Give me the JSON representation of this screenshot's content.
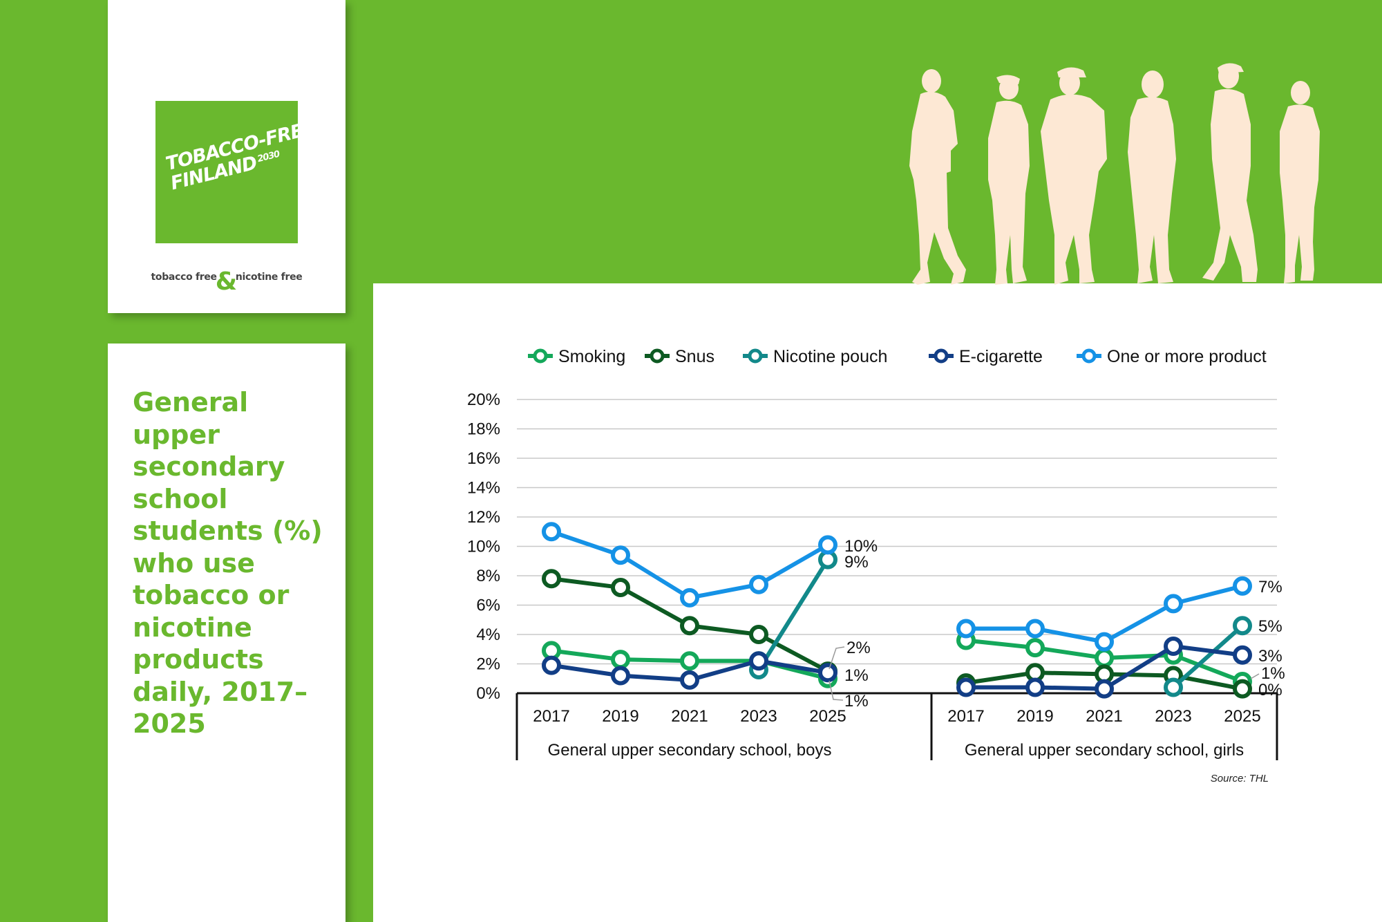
{
  "logo": {
    "line1": "TOBACCO-FREE",
    "registered": "®",
    "line2": "FINLAND",
    "year": "2030",
    "tagline_left": "tobacco free",
    "tagline_amp": "&",
    "tagline_right": "nicotine free"
  },
  "title": "General upper secondary school students (%) who use tobacco or nicotine products daily, 2017–2025",
  "source": "Source: THL",
  "colors": {
    "brand_green": "#6ab82e",
    "silhouettes": "#fde8d4",
    "smoking": "#14a85a",
    "snus": "#0d5a22",
    "nicotine_pouch": "#12898a",
    "e_cigarette": "#123e86",
    "one_or_more": "#1592e6"
  },
  "chart_data": {
    "type": "line",
    "ylim": [
      0,
      20
    ],
    "y_ticks": [
      "0%",
      "2%",
      "4%",
      "6%",
      "8%",
      "10%",
      "12%",
      "14%",
      "16%",
      "18%",
      "20%"
    ],
    "categories": [
      "2017",
      "2019",
      "2021",
      "2023",
      "2025"
    ],
    "legend_position": "top",
    "grid": true,
    "groups": [
      {
        "label": "General upper secondary school, boys",
        "series": [
          {
            "name": "Smoking",
            "values": [
              2.9,
              2.3,
              2.2,
              2.2,
              1.0
            ]
          },
          {
            "name": "Snus",
            "values": [
              7.8,
              7.2,
              4.6,
              4.0,
              1.5
            ]
          },
          {
            "name": "Nicotine pouch",
            "values": [
              null,
              null,
              null,
              1.6,
              9.1
            ]
          },
          {
            "name": "E-cigarette",
            "values": [
              1.9,
              1.2,
              0.9,
              2.2,
              1.4
            ]
          },
          {
            "name": "One or more product",
            "values": [
              11.0,
              9.4,
              6.5,
              7.4,
              10.1
            ]
          }
        ],
        "data_labels": {
          "One or more product": "10%",
          "Nicotine pouch": "9%",
          "Snus": "2%",
          "E-cigarette": "1%",
          "Smoking": "1%"
        }
      },
      {
        "label": "General upper secondary school, girls",
        "series": [
          {
            "name": "Smoking",
            "values": [
              3.6,
              3.1,
              2.4,
              2.6,
              0.8
            ]
          },
          {
            "name": "Snus",
            "values": [
              0.7,
              1.4,
              1.3,
              1.2,
              0.3
            ]
          },
          {
            "name": "Nicotine pouch",
            "values": [
              null,
              null,
              null,
              0.4,
              4.6
            ]
          },
          {
            "name": "E-cigarette",
            "values": [
              0.4,
              0.4,
              0.3,
              3.2,
              2.6
            ]
          },
          {
            "name": "One or more product",
            "values": [
              4.4,
              4.4,
              3.5,
              6.1,
              7.3
            ]
          }
        ],
        "data_labels": {
          "One or more product": "7%",
          "Nicotine pouch": "5%",
          "E-cigarette": "3%",
          "Smoking": "1%",
          "Snus": "0%"
        }
      }
    ]
  }
}
